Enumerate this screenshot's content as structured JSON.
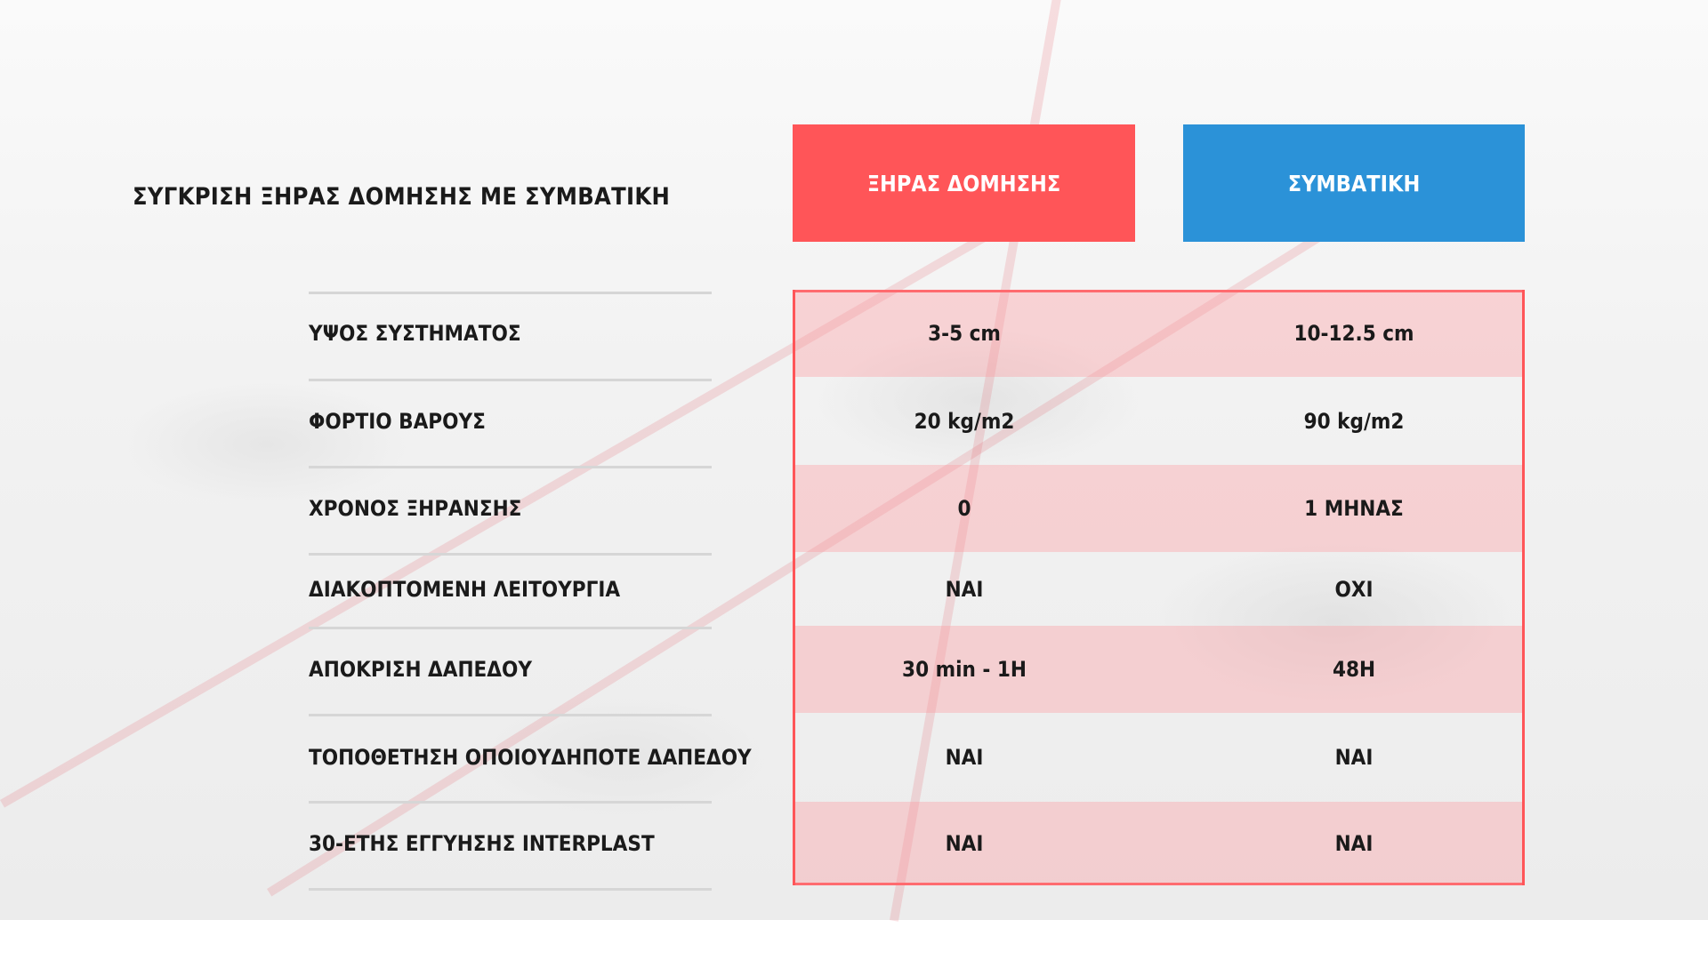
{
  "title": "ΣΥΓΚΡΙΣΗ ΞΗΡΑΣ ΔΟΜΗΣΗΣ ΜΕ ΣΥΜΒΑΤΙΚΗ",
  "columns": [
    {
      "label": "ΞΗΡΑΣ ΔΟΜΗΣΗΣ",
      "color": "#ff5558"
    },
    {
      "label": "ΣΥΜΒΑΤΙΚΗ",
      "color": "#2b92d8"
    }
  ],
  "rows": [
    {
      "label": "ΥΨΟΣ ΣΥΣΤΗΜΑΤΟΣ",
      "dry": "3-5 cm",
      "conventional": "10-12.5 cm"
    },
    {
      "label": "ΦΟΡΤΙΟ ΒΑΡΟΥΣ",
      "dry": "20 kg/m2",
      "conventional": "90 kg/m2"
    },
    {
      "label": "ΧΡΟΝΟΣ ΞΗΡΑΝΣΗΣ",
      "dry": "0",
      "conventional": "1 ΜΗΝΑΣ"
    },
    {
      "label": "ΔΙΑΚΟΠΤΟΜΕΝΗ ΛΕΙΤΟΥΡΓΙΑ",
      "dry": "ΝΑΙ",
      "conventional": "ΟΧΙ"
    },
    {
      "label": "ΑΠΟΚΡΙΣΗ ΔΑΠΕΔΟΥ",
      "dry": "30 min - 1H",
      "conventional": "48H"
    },
    {
      "label": "ΤΟΠΟΘΕΤΗΣΗ ΟΠΟΙΟΥΔΗΠΟΤΕ ΔΑΠΕΔΟΥ",
      "dry": "ΝΑΙ",
      "conventional": "ΝΑΙ"
    },
    {
      "label": "30-ΕΤΗΣ ΕΓΓΥΗΣΗΣ INTERPLAST",
      "dry": "ΝΑΙ",
      "conventional": "ΝΑΙ"
    }
  ]
}
